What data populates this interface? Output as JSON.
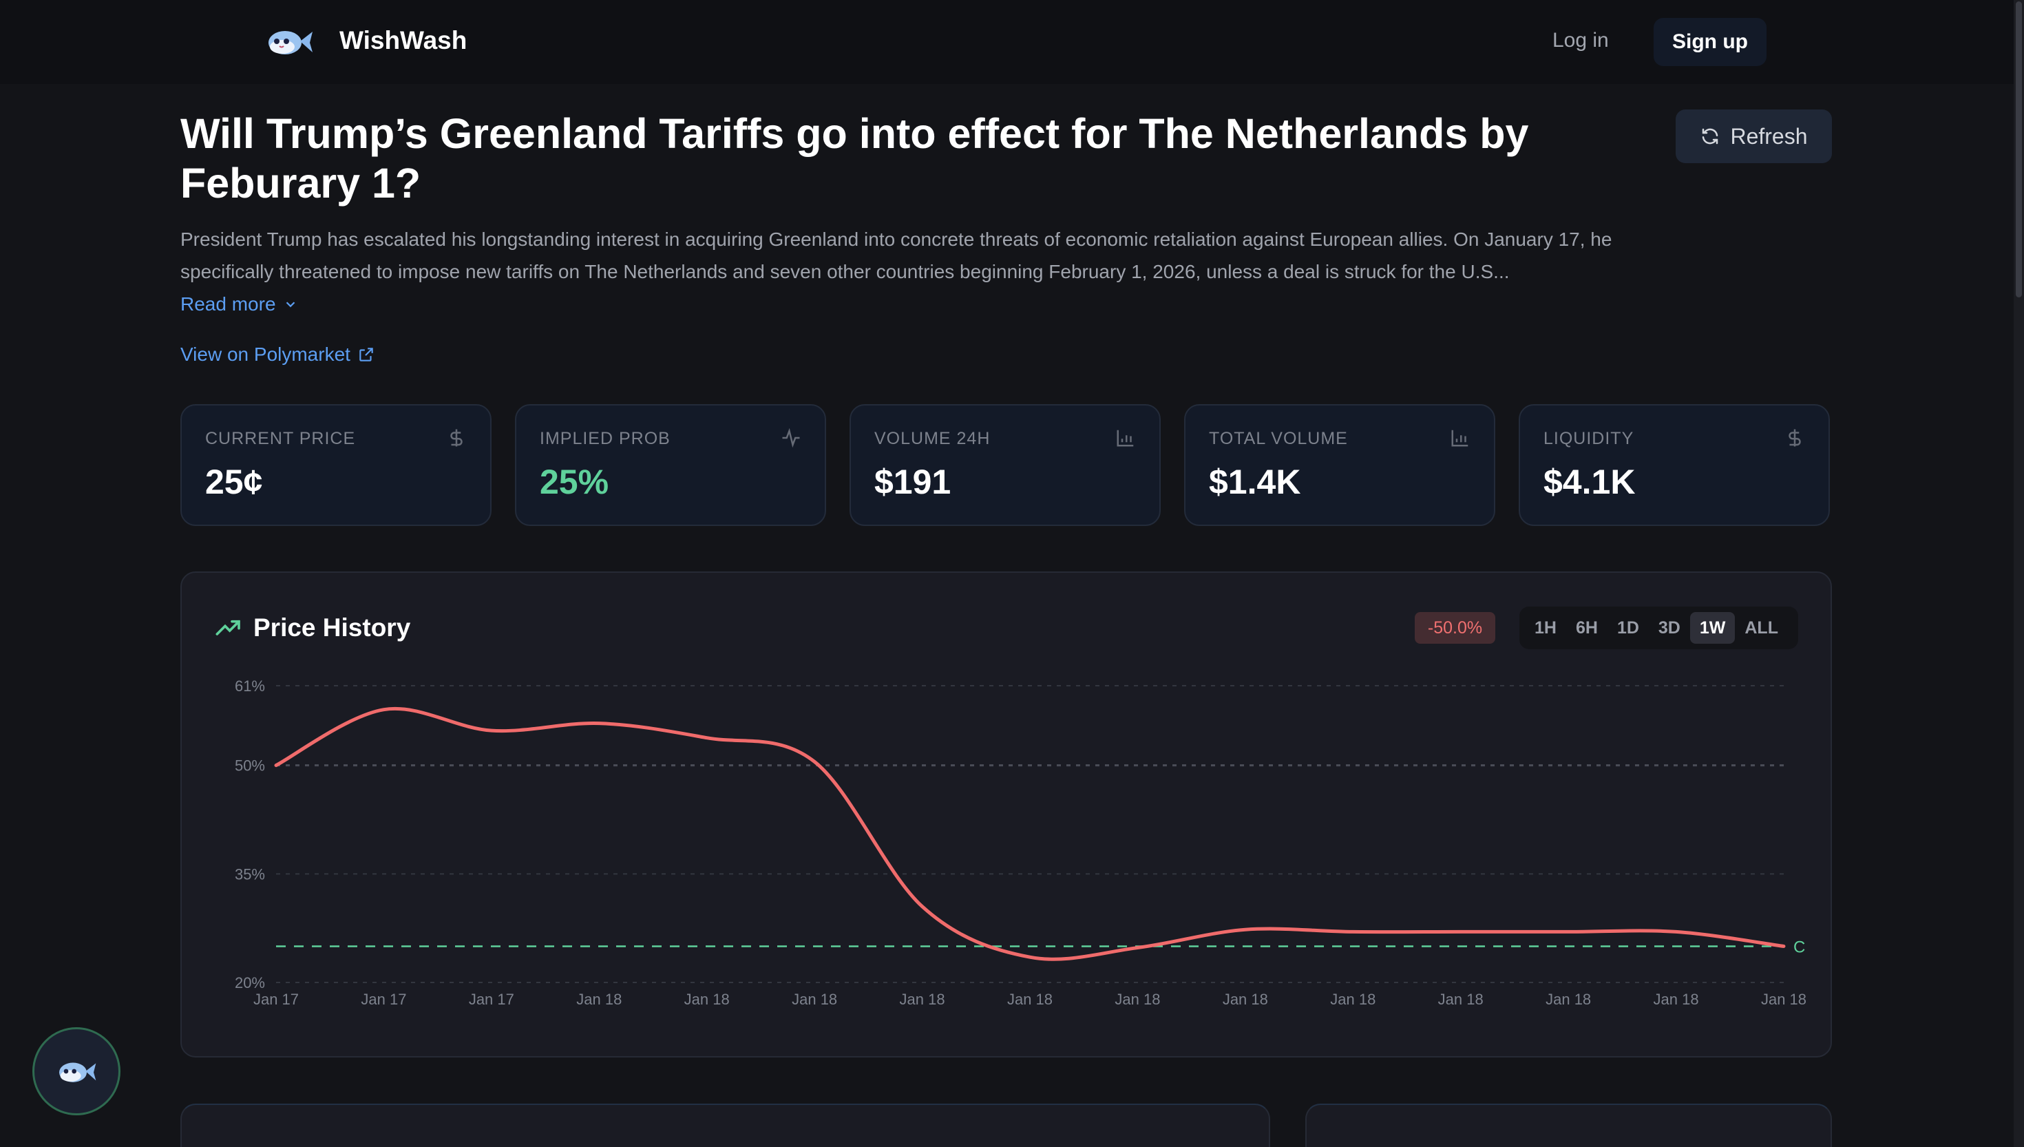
{
  "nav": {
    "brand": "WishWash",
    "login_label": "Log in",
    "signup_label": "Sign up"
  },
  "market": {
    "title": "Will Trump’s Greenland Tariffs go into effect for The Netherlands by Feburary 1?",
    "refresh_label": "Refresh",
    "description": "President Trump has escalated his longstanding interest in acquiring Greenland into concrete threats of economic retaliation against European allies. On January 17, he specifically threatened to impose new tariffs on The Netherlands and seven other countries beginning February 1, 2026, unless a deal is struck for the U.S...",
    "read_more_label": "Read more",
    "polymarket_label": "View on Polymarket"
  },
  "stats": [
    {
      "label": "CURRENT PRICE",
      "value": "25¢",
      "icon": "dollar-icon",
      "color": "#ffffff"
    },
    {
      "label": "IMPLIED PROB",
      "value": "25%",
      "icon": "activity-icon",
      "color": "#5fd19b"
    },
    {
      "label": "VOLUME 24H",
      "value": "$191",
      "icon": "bar-chart-icon",
      "color": "#ffffff"
    },
    {
      "label": "TOTAL VOLUME",
      "value": "$1.4K",
      "icon": "bar-chart-icon",
      "color": "#ffffff"
    },
    {
      "label": "LIQUIDITY",
      "value": "$4.1K",
      "icon": "dollar-icon",
      "color": "#ffffff"
    }
  ],
  "price_history": {
    "title": "Price History",
    "change_badge": "-50.0%",
    "timeframes": [
      "1H",
      "6H",
      "1D",
      "3D",
      "1W",
      "ALL"
    ],
    "active_timeframe": "1W"
  },
  "colors": {
    "line": "#f06b6b",
    "reference": "#5fd19b",
    "accent": "#5c9ef2",
    "negative": "#f07070"
  },
  "chart_data": {
    "type": "line",
    "x_tick_labels": [
      "Jan 17",
      "Jan 17",
      "Jan 17",
      "Jan 18",
      "Jan 18",
      "Jan 18",
      "Jan 18",
      "Jan 18",
      "Jan 18",
      "Jan 18",
      "Jan 18",
      "Jan 18",
      "Jan 18",
      "Jan 18",
      "Jan 18"
    ],
    "y_ticks": [
      20,
      35,
      50,
      61
    ],
    "y_tick_labels": [
      "20%",
      "35%",
      "50%",
      "61%"
    ],
    "ylim": [
      20,
      61
    ],
    "grid": true,
    "series": [
      {
        "values": [
          50,
          57.7,
          54.8,
          55.8,
          53.8,
          50.5,
          30.5,
          23.5,
          24.8,
          27.3,
          27,
          27,
          27,
          27,
          25
        ]
      }
    ],
    "reference_line": {
      "value": 25,
      "label": "C"
    }
  }
}
